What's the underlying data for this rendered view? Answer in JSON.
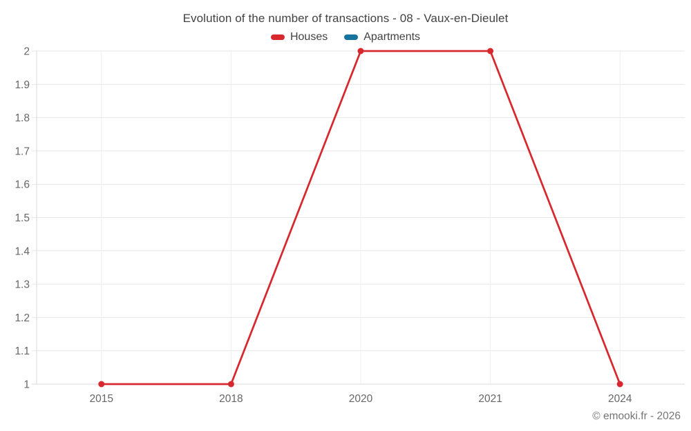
{
  "header": {
    "title": "Evolution of the number of transactions - 08 - Vaux-en-Dieulet"
  },
  "legend": {
    "items": [
      {
        "label": "Houses",
        "color": "#d7282f"
      },
      {
        "label": "Apartments",
        "color": "#16739e"
      }
    ]
  },
  "footer": {
    "copyright": "© emooki.fr - 2026"
  },
  "chart_data": {
    "type": "line",
    "title": "Evolution of the number of transactions - 08 - Vaux-en-Dieulet",
    "categories": [
      "2015",
      "2018",
      "2020",
      "2021",
      "2024"
    ],
    "series": [
      {
        "name": "Houses",
        "color": "#d7282f",
        "values": [
          1,
          1,
          2,
          2,
          1
        ]
      },
      {
        "name": "Apartments",
        "color": "#16739e",
        "values": []
      }
    ],
    "ylim": [
      1,
      2
    ],
    "y_ticks": [
      "1",
      "1.1",
      "1.2",
      "1.3",
      "1.4",
      "1.5",
      "1.6",
      "1.7",
      "1.8",
      "1.9",
      "2"
    ],
    "grid": true,
    "legend_position": "top"
  }
}
